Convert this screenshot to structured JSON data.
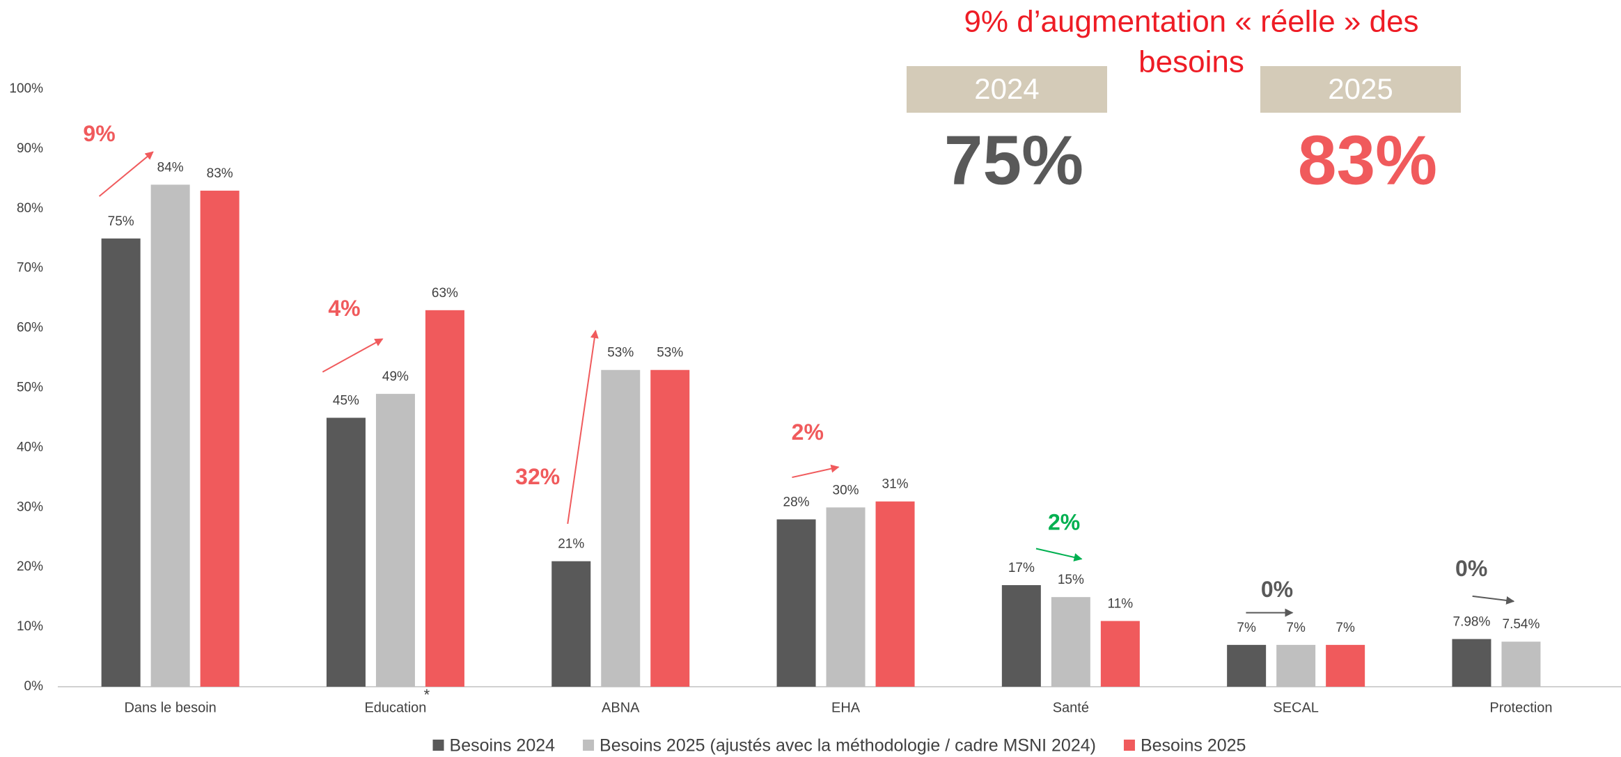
{
  "chart_data": {
    "type": "bar",
    "title": [
      "9% d’augmentation « réelle » des",
      "besoins"
    ],
    "title_color": "#ee1c25",
    "highlights": [
      {
        "label": "2024",
        "value": 75,
        "value_label": "75%",
        "color": "#595959"
      },
      {
        "label": "2025",
        "value": 83,
        "value_label": "83%",
        "color": "#f05a5c"
      }
    ],
    "categories": [
      "Dans le besoin",
      "Education",
      "ABNA",
      "EHA",
      "Santé",
      "SECAL",
      "Protection"
    ],
    "category_note": {
      "index": 1,
      "text": "*"
    },
    "series": [
      {
        "name": "Besoins 2024",
        "color": "#595959",
        "values": [
          75,
          45,
          21,
          28,
          17,
          7,
          7.98
        ],
        "value_labels": [
          "75%",
          "45%",
          "21%",
          "28%",
          "17%",
          "7%",
          "7.98%"
        ]
      },
      {
        "name": "Besoins 2025 (ajustés avec la méthodologie / cadre MSNI 2024)",
        "color": "#bfbfbf",
        "values": [
          84,
          49,
          53,
          30,
          15,
          7,
          7.54
        ],
        "value_labels": [
          "84%",
          "49%",
          "53%",
          "30%",
          "15%",
          "7%",
          "7.54%"
        ]
      },
      {
        "name": "Besoins 2025",
        "color": "#f05a5c",
        "values": [
          83,
          63,
          53,
          31,
          11,
          7,
          null
        ],
        "value_labels": [
          "83%",
          "63%",
          "53%",
          "31%",
          "11%",
          "7%",
          null
        ]
      }
    ],
    "annotations": [
      {
        "text": "9%",
        "color": "#f05a5c"
      },
      {
        "text": "4%",
        "color": "#f05a5c"
      },
      {
        "text": "32%",
        "color": "#f05a5c"
      },
      {
        "text": "2%",
        "color": "#f05a5c"
      },
      {
        "text": "2%",
        "color": "#00b050"
      },
      {
        "text": "0%",
        "color": "#595959"
      },
      {
        "text": "0%",
        "color": "#595959"
      }
    ],
    "ylim": [
      0,
      100
    ],
    "yticks": [
      {
        "value": 0,
        "label": "0%"
      },
      {
        "value": 10,
        "label": "10%"
      },
      {
        "value": 20,
        "label": "20%"
      },
      {
        "value": 30,
        "label": "30%"
      },
      {
        "value": 40,
        "label": "40%"
      },
      {
        "value": 50,
        "label": "50%"
      },
      {
        "value": 60,
        "label": "60%"
      },
      {
        "value": 70,
        "label": "70%"
      },
      {
        "value": 80,
        "label": "80%"
      },
      {
        "value": 90,
        "label": "90%"
      },
      {
        "value": 100,
        "label": "100%"
      }
    ],
    "grid": false
  }
}
